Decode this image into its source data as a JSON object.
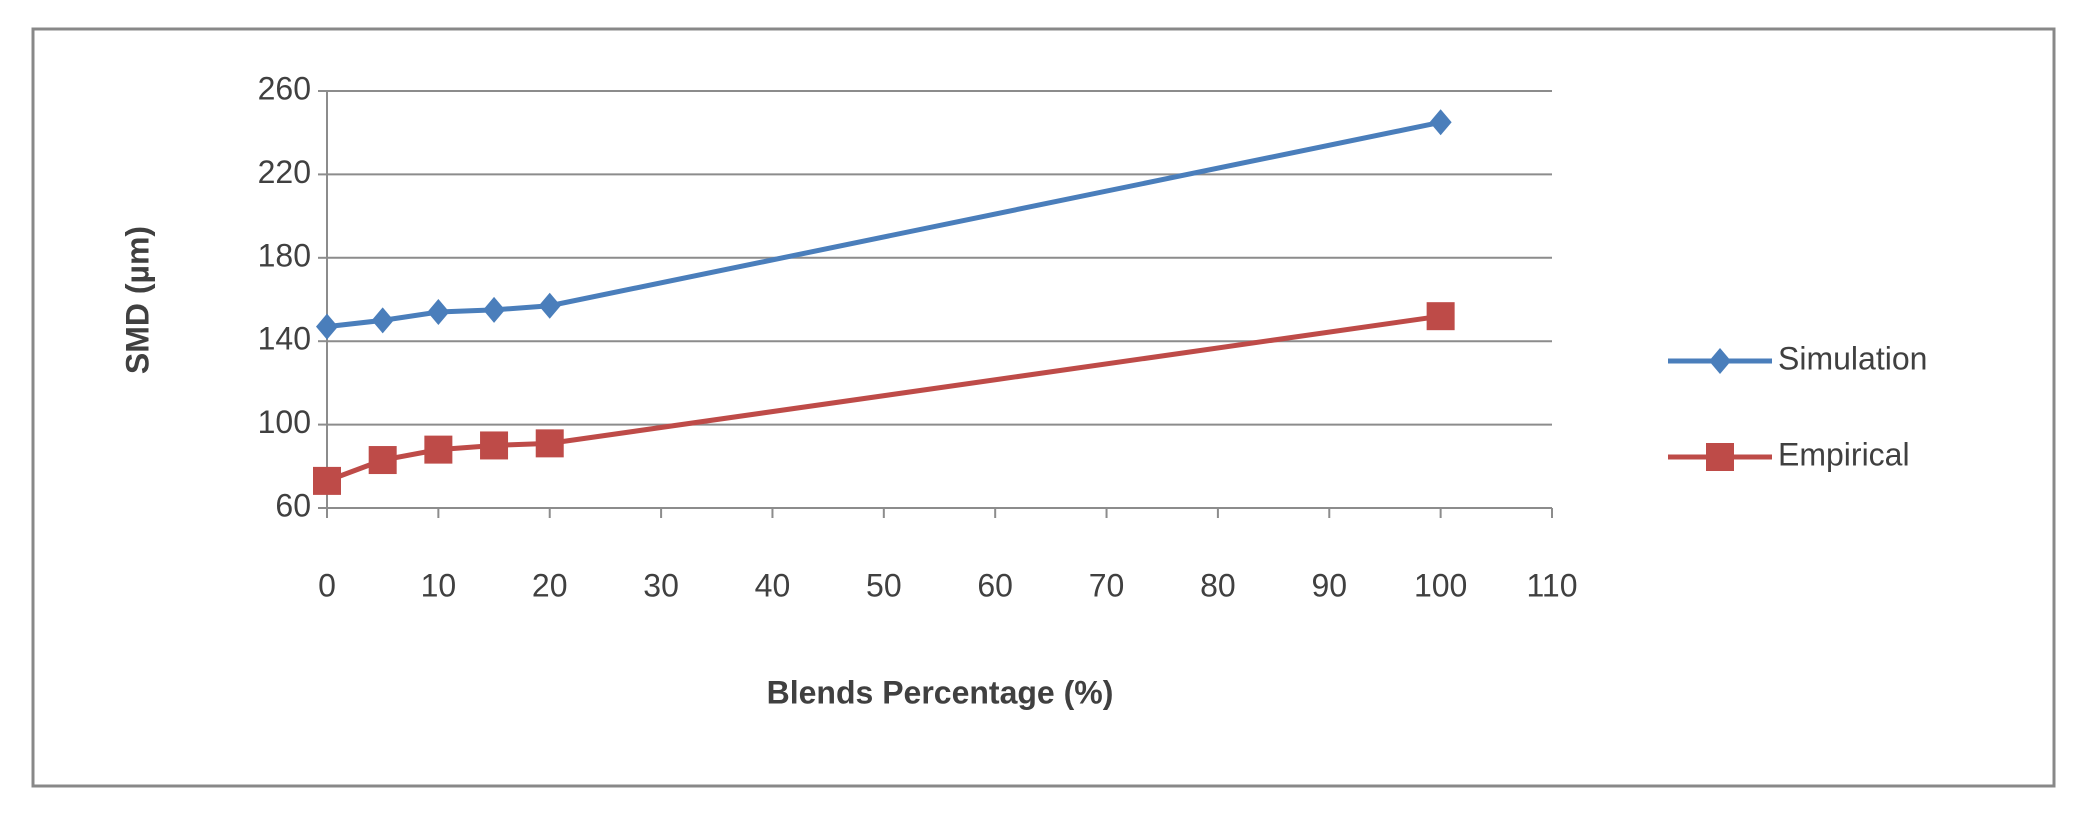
{
  "chart_data": {
    "type": "line",
    "x_label": "Blends Percentage (%)",
    "y_label": "SMD (µm)",
    "x": [
      0,
      5,
      10,
      15,
      20,
      100
    ],
    "series": [
      {
        "name": "Simulation",
        "color": "#4a7ebb",
        "marker": "diamond",
        "values": [
          147,
          150,
          154,
          155,
          157,
          245
        ]
      },
      {
        "name": "Empirical",
        "color": "#be4b48",
        "marker": "square",
        "values": [
          73,
          83,
          88,
          90,
          91,
          152
        ]
      }
    ],
    "xlim": [
      0,
      110
    ],
    "xticks": [
      0,
      10,
      20,
      30,
      40,
      50,
      60,
      70,
      80,
      90,
      100,
      110
    ],
    "ylim": [
      60,
      260
    ],
    "yticks": [
      60,
      100,
      140,
      180,
      220,
      260
    ],
    "grid": true,
    "legend": "right"
  }
}
